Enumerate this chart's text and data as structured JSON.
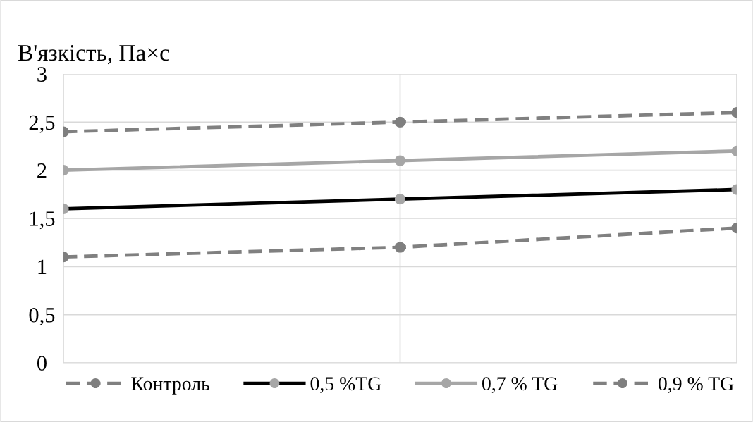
{
  "chart_data": {
    "type": "line",
    "ylabel": "В'язкість, Па×с",
    "categories": [
      null,
      null,
      null
    ],
    "series": [
      {
        "name": "Контроль",
        "color": "#808080",
        "colors": [
          "#7f7f7f",
          "#7f7f7f",
          "#7f7f7f"
        ],
        "line_style": "dashed",
        "values": [
          1.1,
          1.2,
          1.4
        ]
      },
      {
        "name": "0,5 %TG",
        "color": "#000000",
        "colors": [
          "#a6a6a6",
          "#a6a6a6",
          "#a6a6a6"
        ],
        "line_style": "solid",
        "values": [
          1.6,
          1.7,
          1.8
        ]
      },
      {
        "name": "0,7 % TG",
        "color": "#a6a6a6",
        "colors": [
          "#a6a6a6",
          "#a6a6a6",
          "#a6a6a6"
        ],
        "line_style": "solid",
        "values": [
          2.0,
          2.1,
          2.2
        ]
      },
      {
        "name": "0,9 % TG",
        "color": "#808080",
        "colors": [
          "#7f7f7f",
          "#7f7f7f",
          "#7f7f7f"
        ],
        "line_style": "dashed",
        "values": [
          2.4,
          2.5,
          2.6
        ]
      }
    ],
    "ylim": [
      0,
      3
    ],
    "yticks": [
      0,
      {
        "value": 0.5,
        "label": "0,5"
      },
      1,
      {
        "value": 1.5,
        "label": "1,5"
      },
      2,
      {
        "value": 2.5,
        "label": "2,5"
      },
      3
    ],
    "grid": true,
    "marker": "circle",
    "legend": "bottom"
  }
}
